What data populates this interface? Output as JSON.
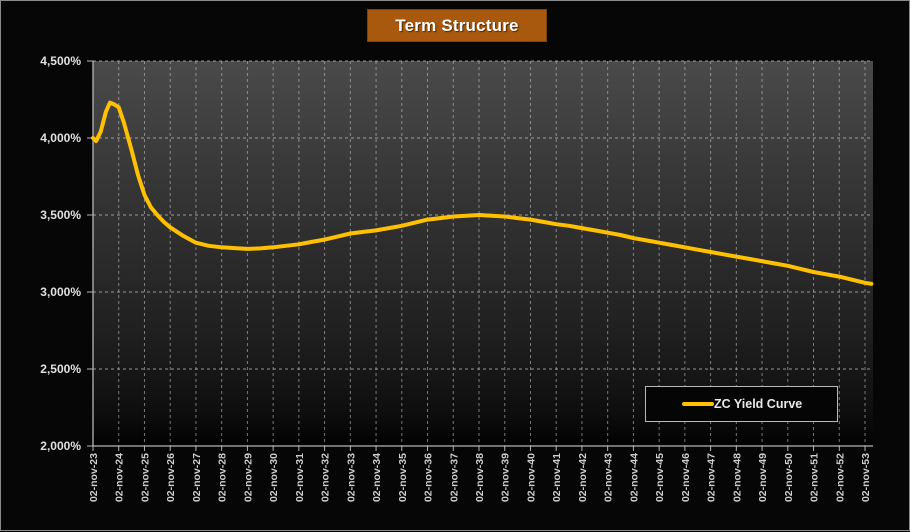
{
  "title": "Term Structure",
  "colors": {
    "accent": "#a9590e",
    "curve": "#ffc000",
    "grid": "#bfbfbf",
    "axis": "#b5b5b5",
    "y_label": "#e0e0e0",
    "x_label": "#cfcfcf",
    "background": "#060606",
    "legend_border": "#b9b9b9",
    "legend_bg": "#050505",
    "plot_gradient_top": "#4a4a4a",
    "plot_gradient_bottom": "#010101"
  },
  "legend": {
    "label": "ZC Yield Curve",
    "position": "bottom-right"
  },
  "y_axis": {
    "tick_labels": [
      "4,500%",
      "4,000%",
      "3,500%",
      "3,000%",
      "2,500%",
      "2,000%"
    ],
    "min_pct": 2.0,
    "max_pct": 4.5,
    "step_pct": 0.5
  },
  "x_axis": {
    "tick_labels": [
      "02-nov-23",
      "02-nov-24",
      "02-nov-25",
      "02-nov-26",
      "02-nov-27",
      "02-nov-28",
      "02-nov-29",
      "02-nov-30",
      "02-nov-31",
      "02-nov-32",
      "02-nov-33",
      "02-nov-34",
      "02-nov-35",
      "02-nov-36",
      "02-nov-37",
      "02-nov-38",
      "02-nov-39",
      "02-nov-40",
      "02-nov-41",
      "02-nov-42",
      "02-nov-43",
      "02-nov-44",
      "02-nov-45",
      "02-nov-46",
      "02-nov-47",
      "02-nov-48",
      "02-nov-49",
      "02-nov-50",
      "02-nov-51",
      "02-nov-52",
      "02-nov-53"
    ]
  },
  "chart_data": {
    "type": "line",
    "title": "Term Structure",
    "xlabel": "",
    "ylabel": "",
    "ylim": [
      2.0,
      4.5
    ],
    "grid": "dashed",
    "legend_position": "bottom-right",
    "x": [
      "02-nov-23",
      "02-nov-24",
      "02-nov-25",
      "02-nov-26",
      "02-nov-27",
      "02-nov-28",
      "02-nov-29",
      "02-nov-30",
      "02-nov-31",
      "02-nov-32",
      "02-nov-33",
      "02-nov-34",
      "02-nov-35",
      "02-nov-36",
      "02-nov-37",
      "02-nov-38",
      "02-nov-39",
      "02-nov-40",
      "02-nov-41",
      "02-nov-42",
      "02-nov-43",
      "02-nov-44",
      "02-nov-45",
      "02-nov-46",
      "02-nov-47",
      "02-nov-48",
      "02-nov-49",
      "02-nov-50",
      "02-nov-51",
      "02-nov-52",
      "02-nov-53"
    ],
    "series": [
      {
        "name": "ZC Yield Curve",
        "color": "#ffc000",
        "values_at_ticks_pct": [
          4.0,
          4.2,
          3.63,
          3.42,
          3.32,
          3.29,
          3.28,
          3.29,
          3.31,
          3.34,
          3.38,
          3.4,
          3.43,
          3.47,
          3.49,
          3.5,
          3.49,
          3.47,
          3.44,
          3.42,
          3.39,
          3.35,
          3.32,
          3.29,
          3.26,
          3.23,
          3.2,
          3.17,
          3.13,
          3.1,
          3.06
        ],
        "dense_points_years_pct": [
          [
            0,
            4.0
          ],
          [
            0.12,
            3.98
          ],
          [
            0.3,
            4.04
          ],
          [
            0.5,
            4.17
          ],
          [
            0.66,
            4.23
          ],
          [
            0.8,
            4.22
          ],
          [
            1,
            4.2
          ],
          [
            1.2,
            4.1
          ],
          [
            1.5,
            3.92
          ],
          [
            1.75,
            3.76
          ],
          [
            2,
            3.63
          ],
          [
            2.25,
            3.55
          ],
          [
            2.5,
            3.5
          ],
          [
            2.75,
            3.455
          ],
          [
            3,
            3.42
          ],
          [
            3.5,
            3.365
          ],
          [
            4,
            3.32
          ],
          [
            4.5,
            3.3
          ],
          [
            5,
            3.29
          ],
          [
            5.5,
            3.285
          ],
          [
            6,
            3.28
          ],
          [
            6.5,
            3.283
          ],
          [
            7,
            3.29
          ],
          [
            7.5,
            3.3
          ],
          [
            8,
            3.31
          ],
          [
            8.5,
            3.325
          ],
          [
            9,
            3.34
          ],
          [
            9.5,
            3.36
          ],
          [
            10,
            3.38
          ],
          [
            10.5,
            3.39
          ],
          [
            11,
            3.4
          ],
          [
            11.5,
            3.415
          ],
          [
            12,
            3.43
          ],
          [
            12.5,
            3.45
          ],
          [
            13,
            3.47
          ],
          [
            13.5,
            3.48
          ],
          [
            14,
            3.49
          ],
          [
            14.5,
            3.495
          ],
          [
            15,
            3.5
          ],
          [
            15.5,
            3.495
          ],
          [
            16,
            3.49
          ],
          [
            16.5,
            3.48
          ],
          [
            17,
            3.47
          ],
          [
            17.5,
            3.455
          ],
          [
            18,
            3.44
          ],
          [
            18.5,
            3.43
          ],
          [
            19,
            3.415
          ],
          [
            19.5,
            3.4
          ],
          [
            20,
            3.385
          ],
          [
            20.5,
            3.37
          ],
          [
            21,
            3.35
          ],
          [
            21.5,
            3.335
          ],
          [
            22,
            3.32
          ],
          [
            22.5,
            3.305
          ],
          [
            23,
            3.29
          ],
          [
            23.5,
            3.275
          ],
          [
            24,
            3.26
          ],
          [
            24.5,
            3.245
          ],
          [
            25,
            3.23
          ],
          [
            25.5,
            3.215
          ],
          [
            26,
            3.2
          ],
          [
            26.5,
            3.185
          ],
          [
            27,
            3.17
          ],
          [
            27.5,
            3.15
          ],
          [
            28,
            3.13
          ],
          [
            28.5,
            3.115
          ],
          [
            29,
            3.1
          ],
          [
            29.5,
            3.08
          ],
          [
            30,
            3.06
          ],
          [
            30.25,
            3.053
          ]
        ]
      }
    ]
  }
}
